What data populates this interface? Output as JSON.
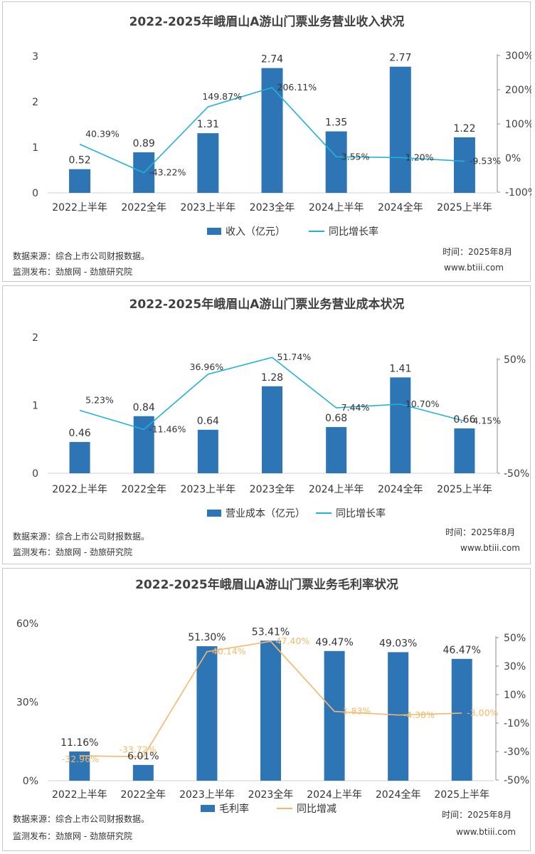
{
  "chart_data": [
    {
      "type": "bar",
      "title": "2022-2025年峨眉山A游山门票业务营业收入状况",
      "categories": [
        "2022上半年",
        "2022全年",
        "2023上半年",
        "2023全年",
        "2024上半年",
        "2024全年",
        "2025上半年"
      ],
      "series": [
        {
          "name": "收入（亿元）",
          "type": "bar",
          "axis": "left",
          "values": [
            0.52,
            0.89,
            1.31,
            2.74,
            1.35,
            2.77,
            1.22
          ],
          "labels": [
            "0.52",
            "0.89",
            "1.31",
            "2.74",
            "1.35",
            "2.77",
            "1.22"
          ],
          "color": "#2e75b6"
        },
        {
          "name": "同比增长率",
          "type": "line",
          "axis": "right",
          "values": [
            40.39,
            -43.22,
            149.87,
            206.11,
            3.55,
            1.2,
            -9.53
          ],
          "labels": [
            "40.39%",
            "-43.22%",
            "149.87%",
            "206.11%",
            "3.55%",
            "1.20%",
            "-9.53%"
          ],
          "color": "#1fb3d6"
        }
      ],
      "ylim": [
        0,
        3
      ],
      "yticks": [
        "0",
        "1",
        "2",
        "3"
      ],
      "y2lim": [
        -100,
        300
      ],
      "y2ticks": [
        "-100%",
        "0%",
        "100%",
        "200%",
        "300%"
      ],
      "source": "数据来源：综合上市公司财报数据。",
      "publisher": "监测发布：劲旅网 - 劲旅研究院",
      "time": "时间：2025年8月",
      "site": "www.btiii.com"
    },
    {
      "type": "bar",
      "title": "2022-2025年峨眉山A游山门票业务营业成本状况",
      "categories": [
        "2022上半年",
        "2022全年",
        "2023上半年",
        "2023全年",
        "2024上半年",
        "2024全年",
        "2025上半年"
      ],
      "series": [
        {
          "name": "营业成本（亿元）",
          "type": "bar",
          "axis": "left",
          "values": [
            0.46,
            0.84,
            0.64,
            1.28,
            0.68,
            1.41,
            0.66
          ],
          "labels": [
            "0.46",
            "0.84",
            "0.64",
            "1.28",
            "0.68",
            "1.41",
            "0.66"
          ],
          "color": "#2e75b6"
        },
        {
          "name": "同比增长率",
          "type": "line",
          "axis": "right",
          "values": [
            5.23,
            -11.46,
            36.96,
            51.74,
            7.44,
            10.7,
            -4.15
          ],
          "labels": [
            "5.23%",
            "-11.46%",
            "36.96%",
            "51.74%",
            "7.44%",
            "10.70%",
            "-4.15%"
          ],
          "color": "#1fb3d6"
        }
      ],
      "ylim": [
        0,
        2
      ],
      "yticks": [
        "0",
        "1",
        "2"
      ],
      "y2lim": [
        -50,
        50
      ],
      "y2ticks": [
        "-50%",
        "50%"
      ],
      "source": "数据来源：综合上市公司财报数据。",
      "publisher": "监测发布：劲旅网 - 劲旅研究院",
      "time": "时间：2025年8月",
      "site": "www.btiii.com"
    },
    {
      "type": "bar",
      "title": "2022-2025年峨眉山A游山门票业务毛利率状况",
      "categories": [
        "2022上半年",
        "2022全年",
        "2023上半年",
        "2023全年",
        "2024上半年",
        "2024全年",
        "2025上半年"
      ],
      "series": [
        {
          "name": "毛利率",
          "type": "bar",
          "axis": "left",
          "values": [
            11.16,
            6.01,
            51.3,
            53.41,
            49.47,
            49.03,
            46.47
          ],
          "labels": [
            "11.16%",
            "6.01%",
            "51.30%",
            "53.41%",
            "49.47%",
            "49.03%",
            "46.47%"
          ],
          "color": "#2e75b6"
        },
        {
          "name": "同比增减",
          "type": "line",
          "axis": "right",
          "values": [
            -32.96,
            -33.72,
            40.14,
            47.4,
            -1.83,
            -4.38,
            -3.0
          ],
          "labels": [
            "-32.96%",
            "-33.72%",
            "40.14%",
            "47.40%",
            "-1.83%",
            "-4.38%",
            "-3.00%"
          ],
          "color": "#f6b86a"
        }
      ],
      "ylim": [
        0,
        60
      ],
      "yticks": [
        "0%",
        "30%",
        "60%"
      ],
      "y2lim": [
        -50,
        50
      ],
      "y2ticks": [
        "-50%",
        "-30%",
        "-10%",
        "10%",
        "30%",
        "50%"
      ],
      "source": "数据来源：综合上市公司财报数据。",
      "publisher": "监测发布：劲旅网 - 劲旅研究院",
      "time": "时间：2025年8月",
      "site": "www.btiii.com"
    }
  ]
}
